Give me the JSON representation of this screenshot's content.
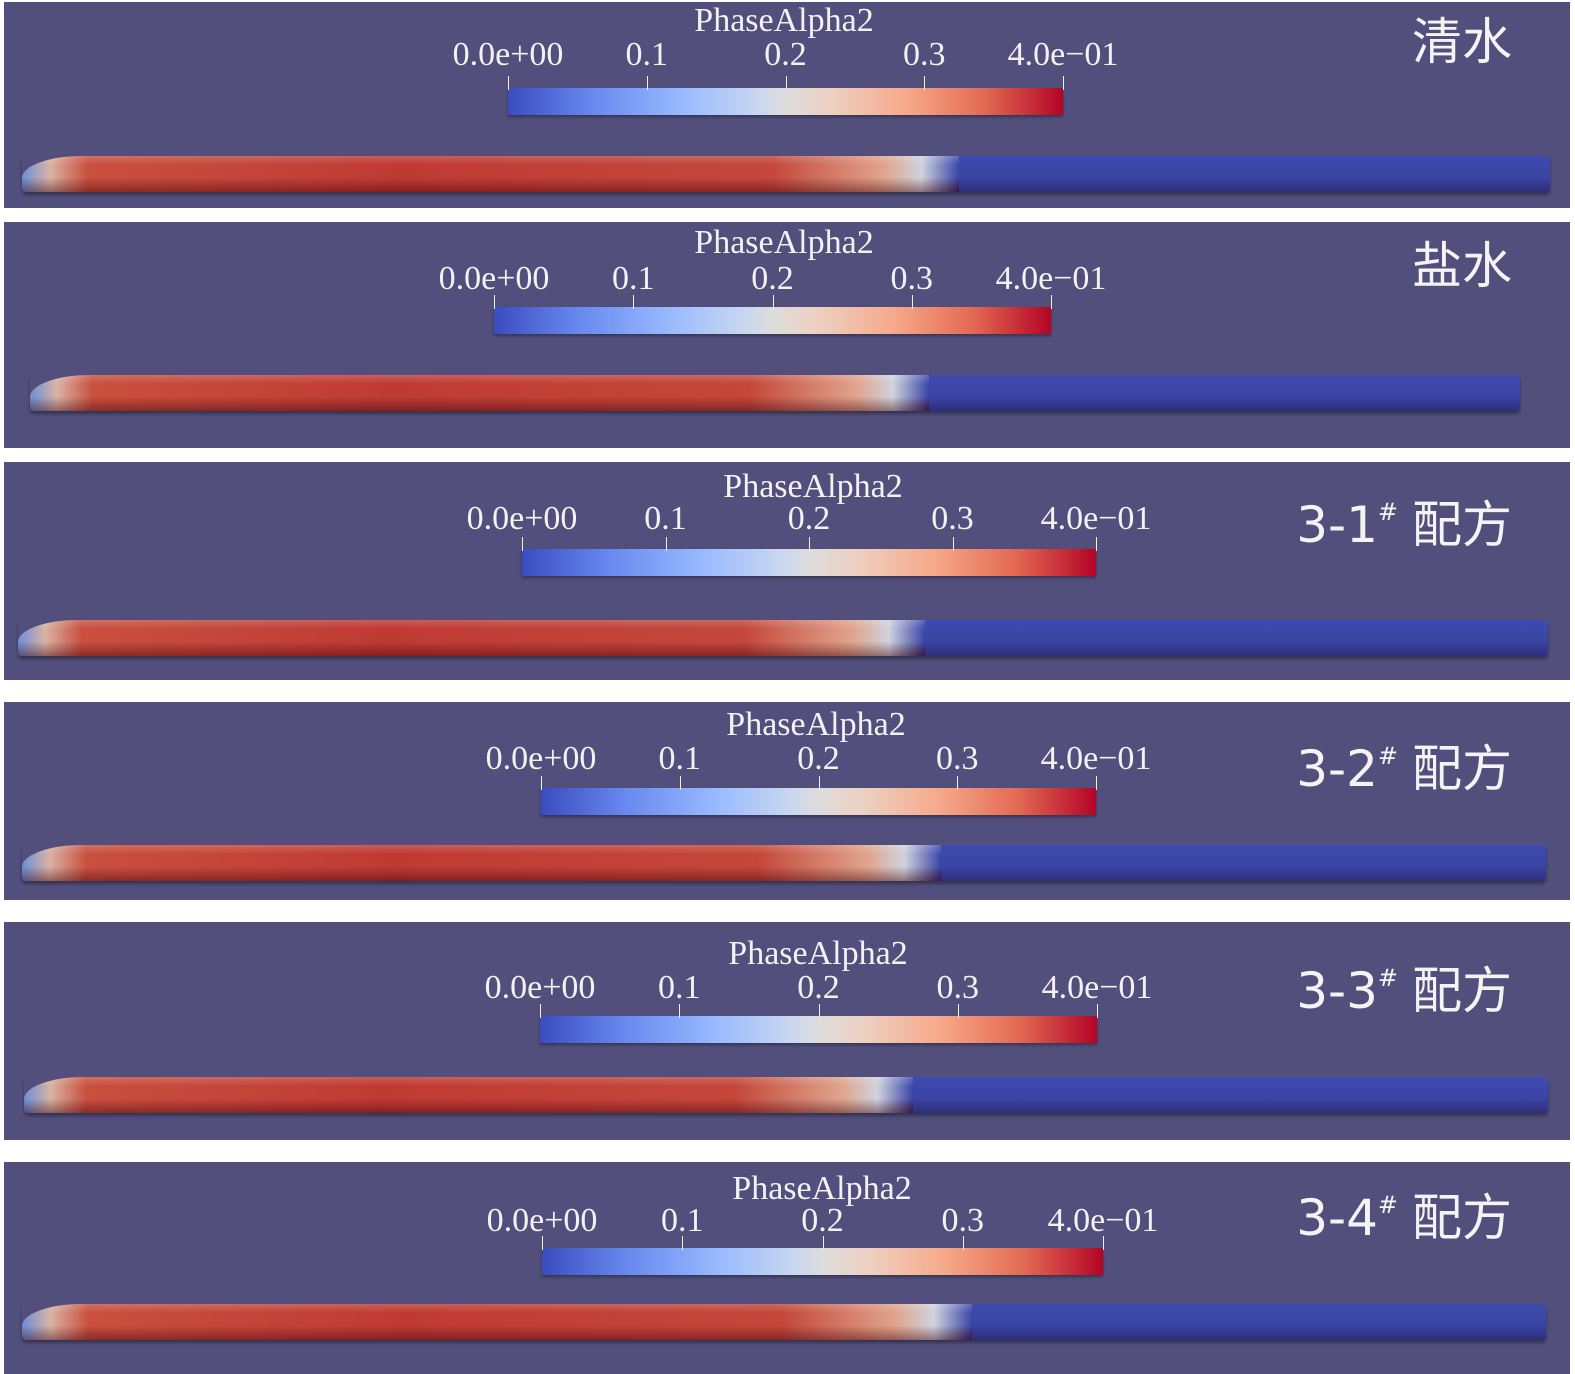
{
  "colorbar": {
    "title": "PhaseAlpha2",
    "ticks": [
      "0.0e+00",
      "0.1",
      "0.2",
      "0.3",
      "4.0e−01"
    ],
    "colormap": [
      "#3b4cc0",
      "#dddcdc",
      "#b40426"
    ]
  },
  "panels": [
    {
      "label": "清水",
      "sup": "",
      "suffix": "",
      "fill_fraction": 0.6
    },
    {
      "label": "盐水",
      "sup": "",
      "suffix": "",
      "fill_fraction": 0.59
    },
    {
      "label": "3-1",
      "sup": "#",
      "suffix": "配方",
      "fill_fraction": 0.58
    },
    {
      "label": "3-2",
      "sup": "#",
      "suffix": "配方",
      "fill_fraction": 0.59
    },
    {
      "label": "3-3",
      "sup": "#",
      "suffix": "配方",
      "fill_fraction": 0.57
    },
    {
      "label": "3-4",
      "sup": "#",
      "suffix": "配方",
      "fill_fraction": 0.61
    }
  ],
  "colors": {
    "background": "#524f7d",
    "water": "#3a44a4",
    "fluid_max": "#b40426"
  }
}
